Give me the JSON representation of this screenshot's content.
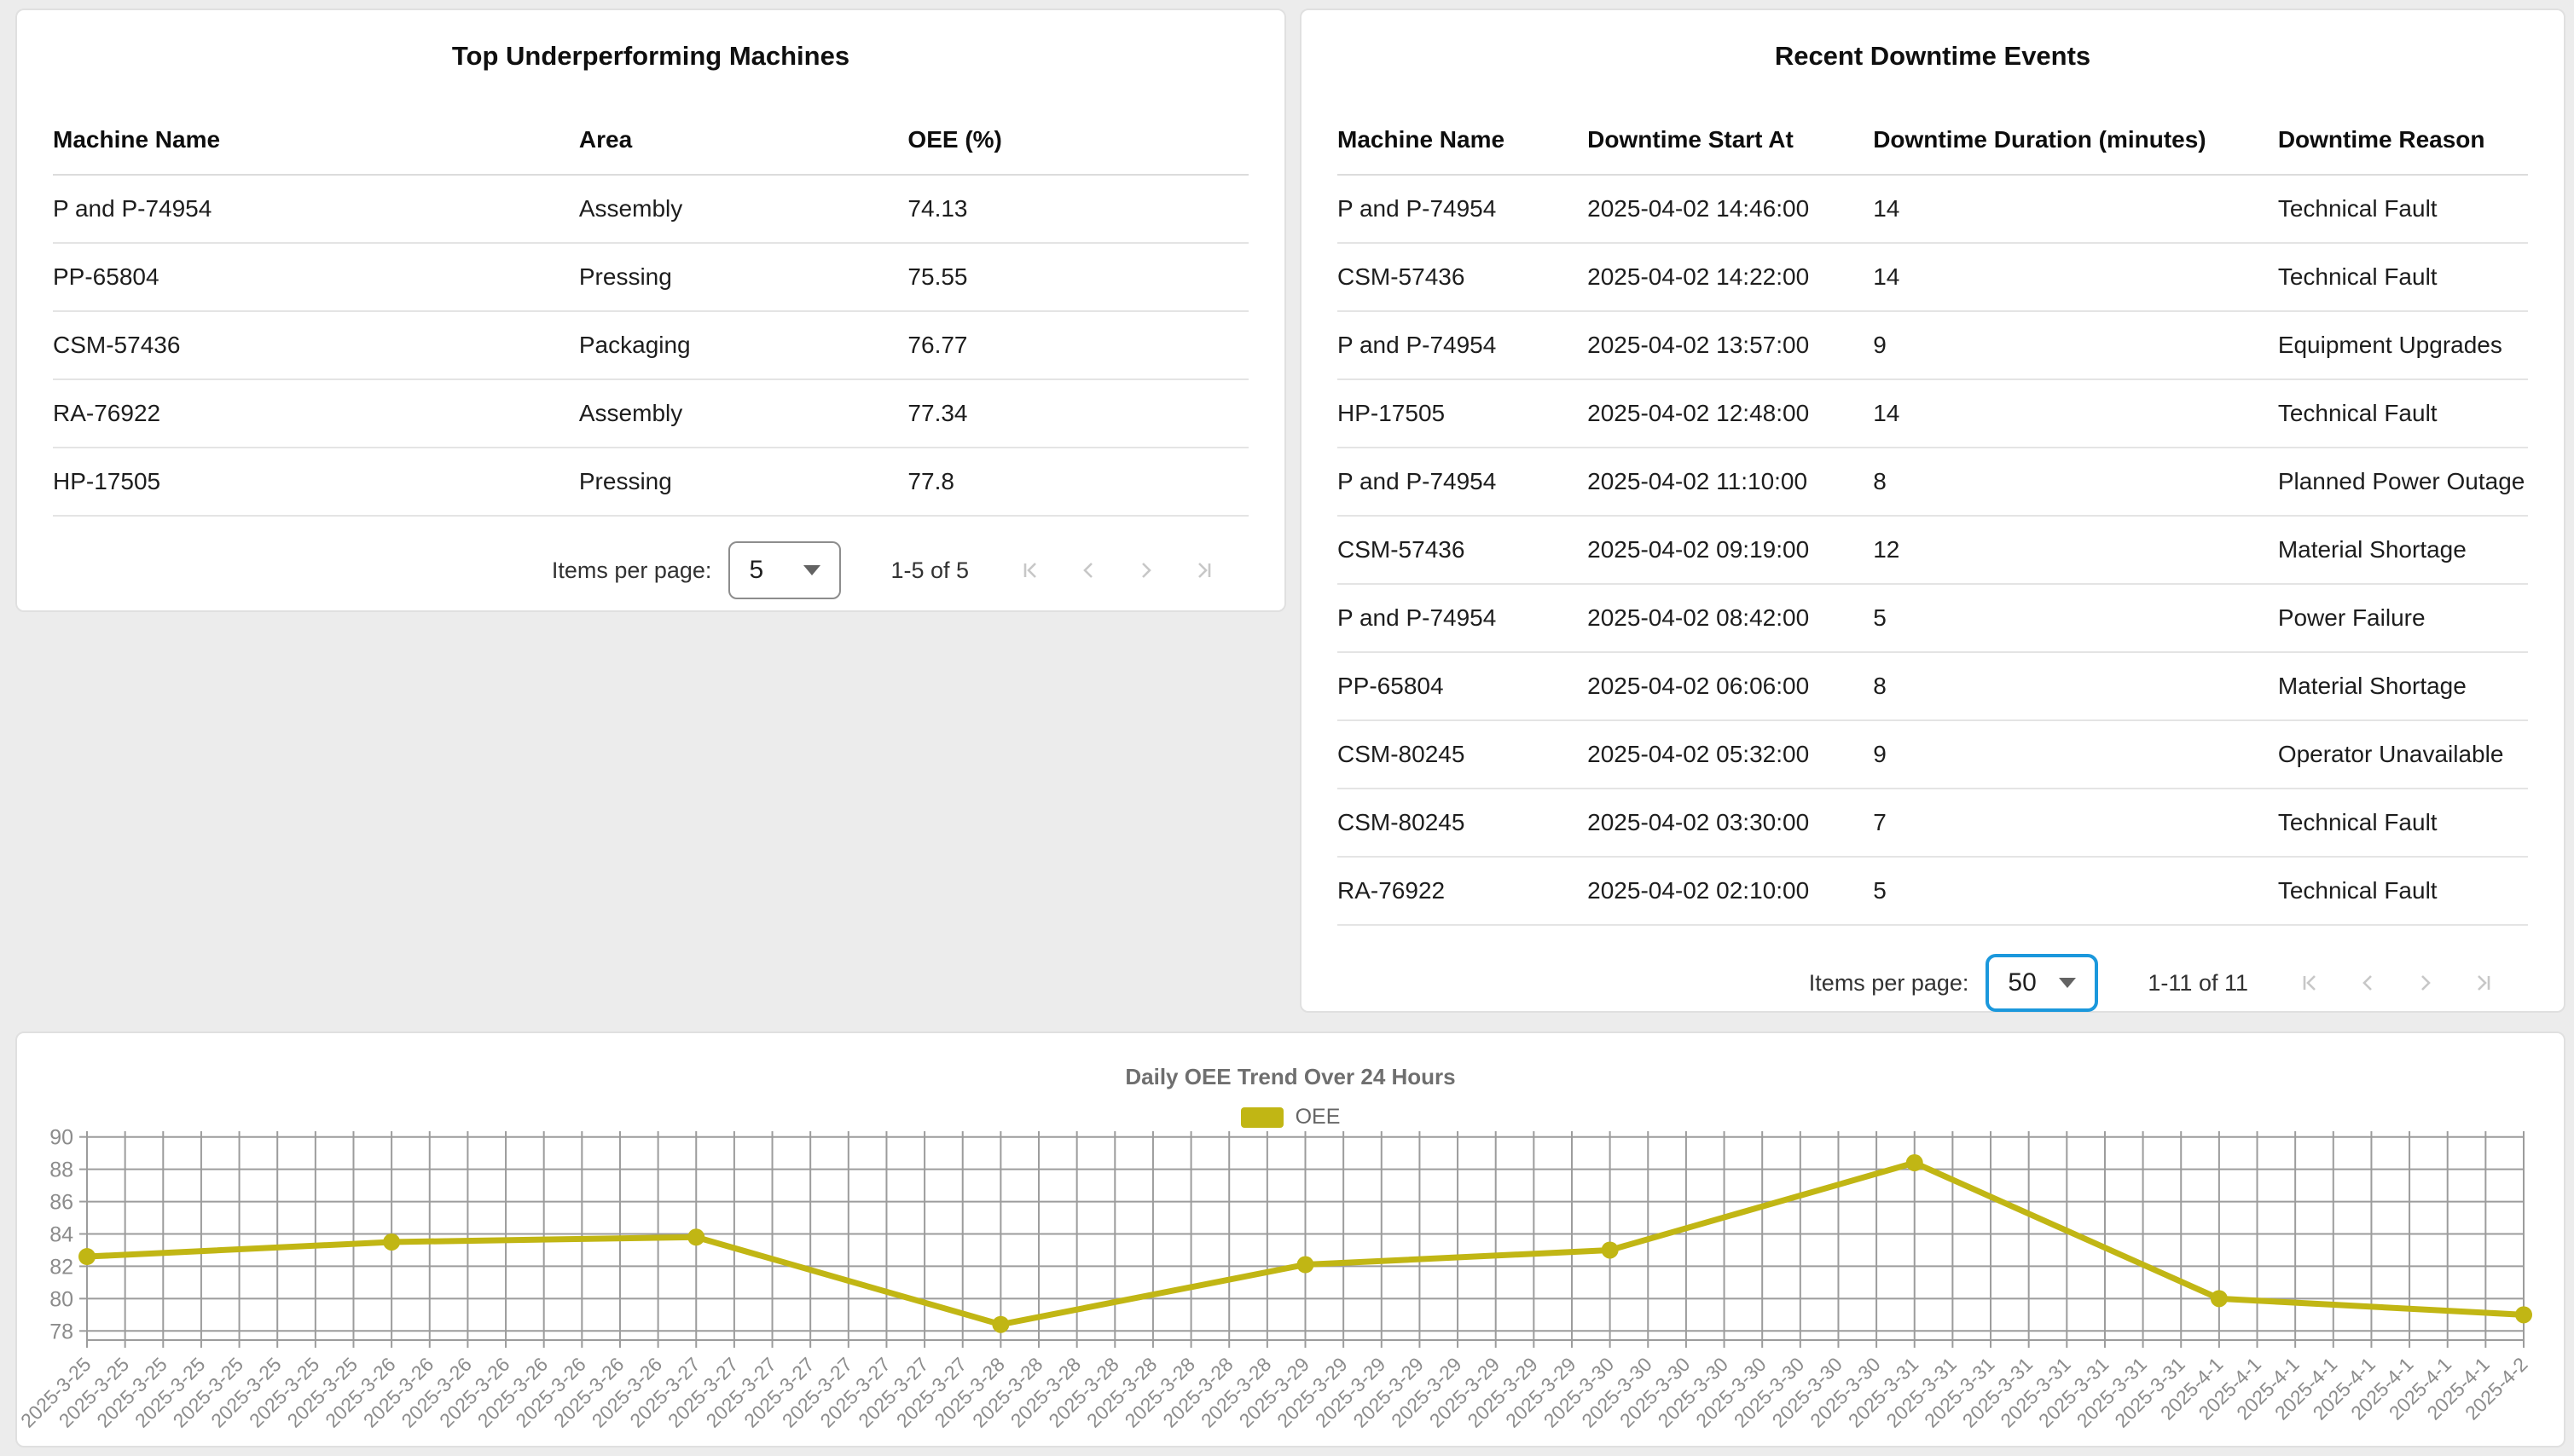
{
  "underperforming": {
    "title": "Top Underperforming Machines",
    "columns": [
      "Machine Name",
      "Area",
      "OEE (%)"
    ],
    "rows": [
      [
        "P and P-74954",
        "Assembly",
        "74.13"
      ],
      [
        "PP-65804",
        "Pressing",
        "75.55"
      ],
      [
        "CSM-57436",
        "Packaging",
        "76.77"
      ],
      [
        "RA-76922",
        "Assembly",
        "77.34"
      ],
      [
        "HP-17505",
        "Pressing",
        "77.8"
      ]
    ],
    "pagination": {
      "label": "Items per page:",
      "page_size": "5",
      "range": "1-5 of 5"
    }
  },
  "downtime": {
    "title": "Recent Downtime Events",
    "columns": [
      "Machine Name",
      "Downtime Start At",
      "Downtime Duration (minutes)",
      "Downtime Reason"
    ],
    "rows": [
      [
        "P and P-74954",
        "2025-04-02 14:46:00",
        "14",
        "Technical Fault"
      ],
      [
        "CSM-57436",
        "2025-04-02 14:22:00",
        "14",
        "Technical Fault"
      ],
      [
        "P and P-74954",
        "2025-04-02 13:57:00",
        "9",
        "Equipment Upgrades"
      ],
      [
        "HP-17505",
        "2025-04-02 12:48:00",
        "14",
        "Technical Fault"
      ],
      [
        "P and P-74954",
        "2025-04-02 11:10:00",
        "8",
        "Planned Power Outage"
      ],
      [
        "CSM-57436",
        "2025-04-02 09:19:00",
        "12",
        "Material Shortage"
      ],
      [
        "P and P-74954",
        "2025-04-02 08:42:00",
        "5",
        "Power Failure"
      ],
      [
        "PP-65804",
        "2025-04-02 06:06:00",
        "8",
        "Material Shortage"
      ],
      [
        "CSM-80245",
        "2025-04-02 05:32:00",
        "9",
        "Operator Unavailable"
      ],
      [
        "CSM-80245",
        "2025-04-02 03:30:00",
        "7",
        "Technical Fault"
      ],
      [
        "RA-76922",
        "2025-04-02 02:10:00",
        "5",
        "Technical Fault"
      ]
    ],
    "pagination": {
      "label": "Items per page:",
      "page_size": "50",
      "range": "1-11 of 11"
    }
  },
  "chart_data": {
    "type": "line",
    "title": "Daily OEE Trend Over 24 Hours",
    "legend": [
      {
        "name": "OEE",
        "color": "#c1b614"
      }
    ],
    "legend_position": "top-center",
    "grid": true,
    "x_dates": [
      "2025-3-25",
      "2025-3-26",
      "2025-3-27",
      "2025-3-28",
      "2025-3-29",
      "2025-3-30",
      "2025-3-31",
      "2025-4-1",
      "2025-4-2"
    ],
    "ticks_per_date": 8,
    "series": [
      {
        "name": "OEE",
        "values": [
          82.6,
          83.5,
          83.8,
          78.4,
          82.1,
          83.0,
          88.4,
          80.0,
          79.0
        ]
      }
    ],
    "ylim": [
      78,
      90
    ],
    "ytick_step": 2
  },
  "colors": {
    "accent_blue": "#1b98dc",
    "line_yellow": "#c1b614"
  }
}
